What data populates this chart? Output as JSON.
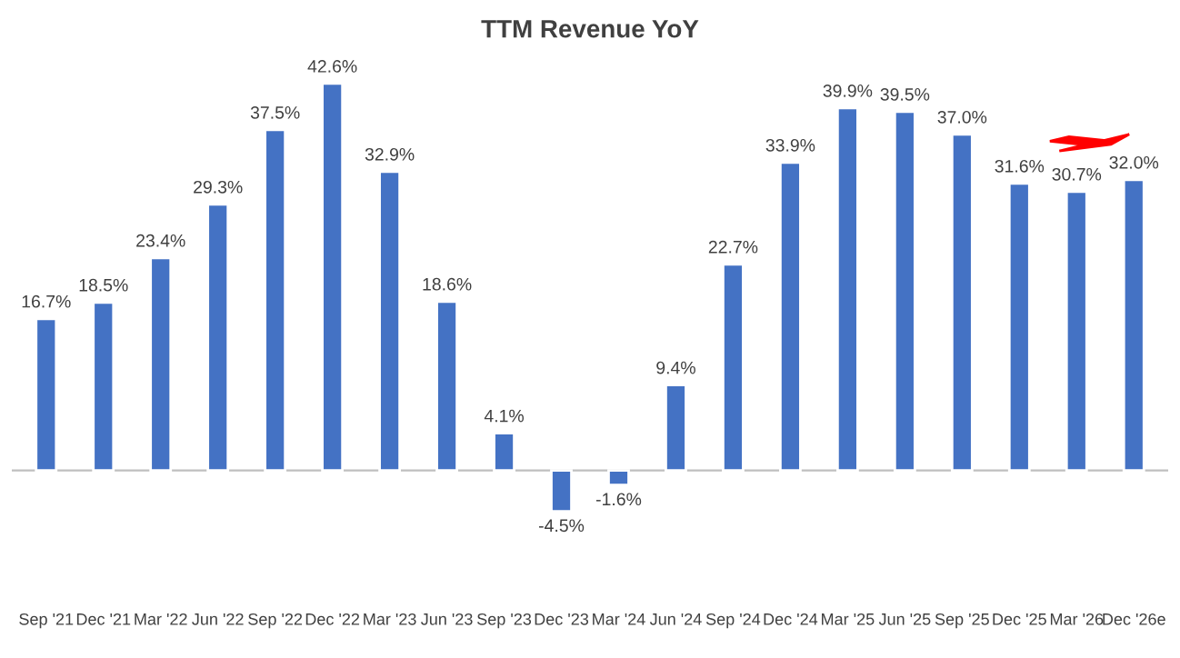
{
  "chart_data": {
    "type": "bar",
    "title": "TTM Revenue YoY",
    "categories": [
      "Sep '21",
      "Dec '21",
      "Mar '22",
      "Jun '22",
      "Sep '22",
      "Dec '22",
      "Mar '23",
      "Jun '23",
      "Sep '23",
      "Dec '23",
      "Mar '24",
      "Jun '24",
      "Sep '24",
      "Dec '24",
      "Mar '25",
      "Jun '25",
      "Sep '25",
      "Dec '25",
      "Mar '26",
      "Dec '26e"
    ],
    "values": [
      16.7,
      18.5,
      23.4,
      29.3,
      37.5,
      42.6,
      32.9,
      18.6,
      4.1,
      -4.5,
      -1.6,
      9.4,
      22.7,
      33.9,
      39.9,
      39.5,
      37.0,
      31.6,
      30.7,
      32.0
    ],
    "value_labels": [
      "16.7%",
      "18.5%",
      "23.4%",
      "29.3%",
      "37.5%",
      "42.6%",
      "32.9%",
      "18.6%",
      "4.1%",
      "-4.5%",
      "-1.6%",
      "9.4%",
      "22.7%",
      "33.9%",
      "39.9%",
      "39.5%",
      "37.0%",
      "31.6%",
      "30.7%",
      "32.0%"
    ],
    "color": "#4472c4",
    "grid": false,
    "legend": false
  }
}
